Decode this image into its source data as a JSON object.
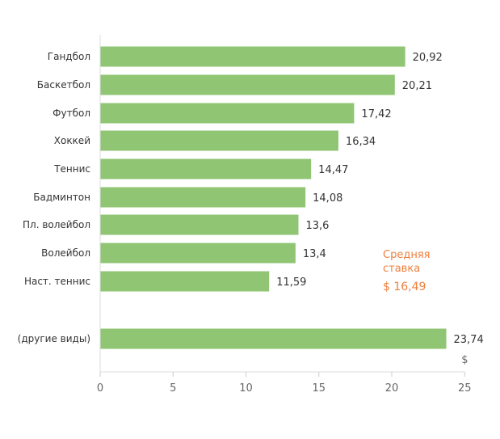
{
  "chart_data": {
    "type": "bar",
    "orientation": "horizontal",
    "categories": [
      "Гандбол",
      "Баскетбол",
      "Футбол",
      "Хоккей",
      "Теннис",
      "Бадминтон",
      "Пл. волейбол",
      "Волейбол",
      "Наст. теннис",
      "(другие виды)"
    ],
    "values": [
      20.92,
      20.21,
      17.42,
      16.34,
      14.47,
      14.08,
      13.6,
      13.4,
      11.59,
      23.74
    ],
    "value_labels": [
      "20,92",
      "20,21",
      "17,42",
      "16,34",
      "14,47",
      "14,08",
      "13,6",
      "13,4",
      "11,59",
      "23,74"
    ],
    "xlim": [
      0,
      25
    ],
    "xticks": [
      0,
      5,
      10,
      15,
      20,
      25
    ],
    "xtick_labels": [
      "0",
      "5",
      "10",
      "15",
      "20",
      "25"
    ],
    "unit_label": "$",
    "bar_color": "#8fc573",
    "average": {
      "line1": "Средняя",
      "line2": "ставка",
      "value_text": "$ 16,49",
      "value": 16.49,
      "color": "#f07f3c"
    },
    "grid": false
  }
}
